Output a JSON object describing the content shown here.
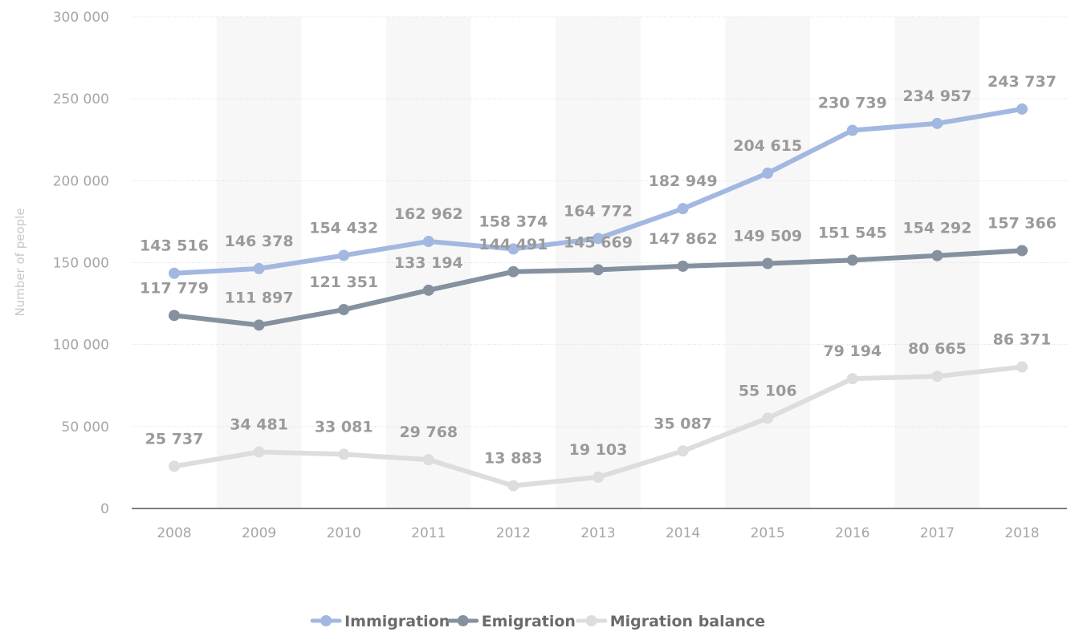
{
  "chart_data": {
    "type": "line",
    "title": "",
    "xlabel": "",
    "ylabel": "Number of people",
    "x": [
      "2008",
      "2009",
      "2010",
      "2011",
      "2012",
      "2013",
      "2014",
      "2015",
      "2016",
      "2017",
      "2018"
    ],
    "ylim": [
      0,
      300000
    ],
    "yticks": [
      0,
      50000,
      100000,
      150000,
      200000,
      250000,
      300000
    ],
    "ytick_labels": [
      "0",
      "50 000",
      "100 000",
      "150 000",
      "200 000",
      "250 000",
      "300 000"
    ],
    "grid": true,
    "legend_position": "bottom-center",
    "series": [
      {
        "name": "Immigration",
        "color": "#a3b8e0",
        "values": [
          143516,
          146378,
          154432,
          162962,
          158374,
          164772,
          182949,
          204615,
          230739,
          234957,
          243737
        ],
        "labels": [
          "143 516",
          "146 378",
          "154 432",
          "162 962",
          "158 374",
          "164 772",
          "182 949",
          "204 615",
          "230 739",
          "234 957",
          "243 737"
        ]
      },
      {
        "name": "Emigration",
        "color": "#85919e",
        "values": [
          117779,
          111897,
          121351,
          133194,
          144491,
          145669,
          147862,
          149509,
          151545,
          154292,
          157366
        ],
        "labels": [
          "117 779",
          "111 897",
          "121 351",
          "133 194",
          "144 491",
          "145 669",
          "147 862",
          "149 509",
          "151 545",
          "154 292",
          "157 366"
        ]
      },
      {
        "name": "Migration balance",
        "color": "#dddddd",
        "values": [
          25737,
          34481,
          33081,
          29768,
          13883,
          19103,
          35087,
          55106,
          79194,
          80665,
          86371
        ],
        "labels": [
          "25 737",
          "34 481",
          "33 081",
          "29 768",
          "13 883",
          "19 103",
          "35 087",
          "55 106",
          "79 194",
          "80 665",
          "86 371"
        ]
      }
    ]
  }
}
